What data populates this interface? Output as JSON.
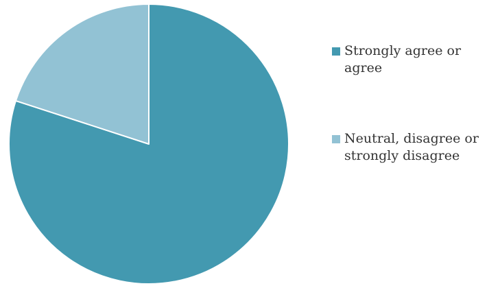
{
  "chart_data": {
    "type": "pie",
    "title": "",
    "start_angle_deg": 0,
    "direction": "clockwise",
    "legend_position": "right",
    "slices": [
      {
        "label": "Strongly agree or agree",
        "value": 80,
        "color": "#4399b0"
      },
      {
        "label": "Neutral, disagree or strongly disagree",
        "value": 20,
        "color": "#92c2d4"
      }
    ]
  }
}
